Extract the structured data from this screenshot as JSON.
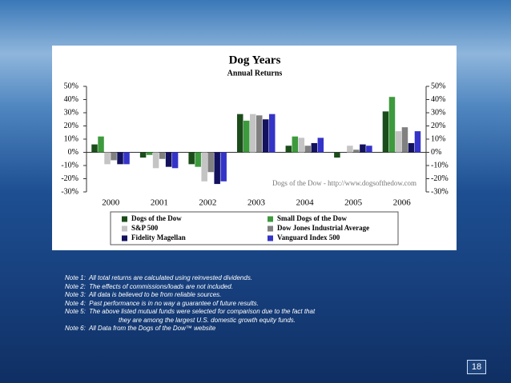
{
  "chart_data": {
    "type": "bar",
    "title": "Dog Years",
    "subtitle": "Annual Returns",
    "annotation": "Dogs of the Dow - http://www.dogsofthedow.com",
    "categories": [
      "2000",
      "2001",
      "2002",
      "2003",
      "2004",
      "2005",
      "2006"
    ],
    "series": [
      {
        "name": "Dogs of the Dow",
        "color": "#1b4d1b",
        "values": [
          6,
          -4,
          -9,
          29,
          5,
          -4,
          31
        ]
      },
      {
        "name": "Small Dogs of the Dow",
        "color": "#3d9a3d",
        "values": [
          12,
          -2,
          -11,
          24,
          12,
          0,
          42
        ]
      },
      {
        "name": "S&P 500",
        "color": "#c4c4c4",
        "values": [
          -9,
          -12,
          -22,
          29,
          11,
          5,
          16
        ]
      },
      {
        "name": "Dow Jones Industrial Average",
        "color": "#808080",
        "values": [
          -6,
          -5,
          -15,
          28,
          5,
          2,
          19
        ]
      },
      {
        "name": "Fidelity Magellan",
        "color": "#12125e",
        "values": [
          -9,
          -11,
          -24,
          25,
          7,
          6,
          7
        ]
      },
      {
        "name": "Vanguard Index 500",
        "color": "#3434c8",
        "values": [
          -9,
          -12,
          -22,
          29,
          11,
          5,
          16
        ]
      }
    ],
    "ylim": [
      -30,
      50
    ],
    "yticks": [
      {
        "value": -30,
        "label": "-30%"
      },
      {
        "value": -20,
        "label": "-20%"
      },
      {
        "value": -10,
        "label": "-10%"
      },
      {
        "value": 0,
        "label": "0%"
      },
      {
        "value": 10,
        "label": "10%"
      },
      {
        "value": 20,
        "label": "20%"
      },
      {
        "value": 30,
        "label": "30%"
      },
      {
        "value": 40,
        "label": "40%"
      },
      {
        "value": 50,
        "label": "50%"
      }
    ],
    "grid": false
  },
  "notes": [
    "Note 1:  All total returns are calculated using reinvested dividends.",
    "Note 2:  The effects of commissions/loads are not included.",
    "Note 3:  All data is believed to be from reliable sources.",
    "Note 4:  Past performance is in no way a guarantee of future results.",
    "Note 5:  The above listed mutual funds were selected for comparison due to the fact that",
    "they are among the largest U.S. domestic growth equity funds.",
    "Note 6:  All Data from the Dogs of the Dow™ website"
  ],
  "page_number": "18"
}
